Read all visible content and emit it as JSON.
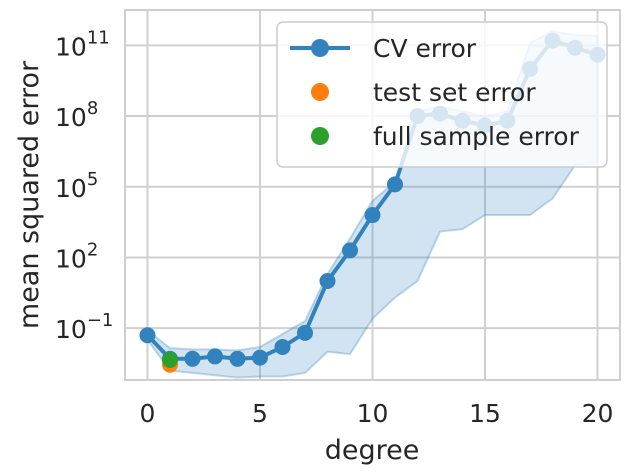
{
  "chart_data": {
    "type": "line",
    "xlabel": "degree",
    "ylabel": "mean squared error",
    "yscale": "log",
    "xlim": [
      -1,
      21
    ],
    "ylim_exp": [
      -3.2,
      12.5
    ],
    "x_ticks": [
      0,
      5,
      10,
      15,
      20
    ],
    "y_ticks": [
      {
        "exp": -1,
        "base": "10",
        "power": "−1"
      },
      {
        "exp": 2,
        "base": "10",
        "power": "2"
      },
      {
        "exp": 5,
        "base": "10",
        "power": "5"
      },
      {
        "exp": 8,
        "base": "10",
        "power": "8"
      },
      {
        "exp": 11,
        "base": "10",
        "power": "11"
      }
    ],
    "grid": true,
    "legend_position": "top-right",
    "series": [
      {
        "name": "CV error",
        "kind": "line-markers",
        "color": "#3182bd",
        "x": [
          0,
          1,
          2,
          3,
          4,
          5,
          6,
          7,
          8,
          9,
          10,
          11,
          12,
          13,
          14,
          15,
          16,
          17,
          18,
          19,
          20
        ],
        "log10_y": [
          -1.3,
          -2.3,
          -2.3,
          -2.2,
          -2.3,
          -2.25,
          -1.8,
          -1.2,
          1.0,
          2.3,
          3.8,
          5.1,
          8.0,
          8.1,
          7.8,
          7.6,
          7.8,
          10.0,
          11.2,
          10.9,
          10.6
        ],
        "band_low": [
          -1.5,
          -2.8,
          -2.9,
          -3.0,
          -3.1,
          -3.05,
          -3.05,
          -2.9,
          -2.0,
          -2.1,
          -0.6,
          0.3,
          1.0,
          3.1,
          3.2,
          3.8,
          3.8,
          3.8,
          4.5,
          5.9,
          6.0
        ],
        "band_high": [
          -1.1,
          -1.85,
          -1.9,
          -1.9,
          -1.95,
          -1.8,
          -1.25,
          -0.7,
          1.3,
          2.8,
          4.4,
          5.2,
          8.2,
          8.4,
          8.2,
          8.0,
          8.2,
          11.1,
          11.6,
          11.45,
          11.4
        ]
      },
      {
        "name": "test set error",
        "kind": "marker",
        "color": "#ff7f0e",
        "x": [
          1
        ],
        "log10_y": [
          -2.55
        ]
      },
      {
        "name": "full sample error",
        "kind": "marker",
        "color": "#2ca02c",
        "x": [
          1
        ],
        "log10_y": [
          -2.35
        ]
      }
    ]
  }
}
